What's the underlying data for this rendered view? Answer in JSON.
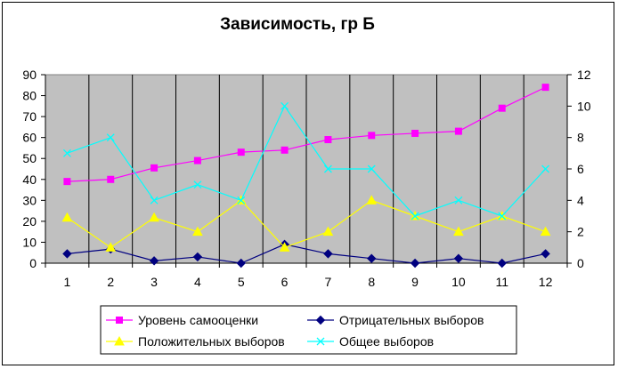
{
  "chart_data": {
    "type": "line",
    "title": "Зависимость, гр Б",
    "categories": [
      "1",
      "2",
      "3",
      "4",
      "5",
      "6",
      "7",
      "8",
      "9",
      "10",
      "11",
      "12"
    ],
    "y_left": {
      "min": 0,
      "max": 90,
      "step": 10,
      "ticks": [
        "0",
        "10",
        "20",
        "30",
        "40",
        "50",
        "60",
        "70",
        "80",
        "90"
      ]
    },
    "y_right": {
      "min": 0,
      "max": 12,
      "step": 2,
      "ticks": [
        "0",
        "2",
        "4",
        "6",
        "8",
        "10",
        "12"
      ]
    },
    "plot_background": "#c0c0c0",
    "vertical_gridlines": true,
    "legend_position": "bottom",
    "series": [
      {
        "name": "Уровень самооценки",
        "axis": "left",
        "color": "#ff00ff",
        "marker": "square",
        "values": [
          39,
          40,
          45.5,
          49,
          53,
          54,
          59,
          61,
          62,
          63,
          74,
          84
        ]
      },
      {
        "name": "Отрицательных выборов",
        "axis": "right",
        "color": "#000080",
        "marker": "diamond",
        "values": [
          0.6,
          0.9,
          0.15,
          0.4,
          0,
          1.2,
          0.6,
          0.3,
          0,
          0.3,
          0,
          0.6
        ]
      },
      {
        "name": "Положительных выборов",
        "axis": "right",
        "color": "#ffff00",
        "marker": "triangle",
        "values": [
          2.9,
          1,
          2.9,
          2,
          4,
          1,
          2,
          4,
          3,
          2,
          3,
          2
        ]
      },
      {
        "name": "Общее выборов",
        "axis": "right",
        "color": "#00ffff",
        "marker": "x",
        "values": [
          7,
          8,
          4,
          5,
          4,
          10,
          6,
          6,
          3,
          4,
          3,
          6
        ]
      }
    ]
  }
}
